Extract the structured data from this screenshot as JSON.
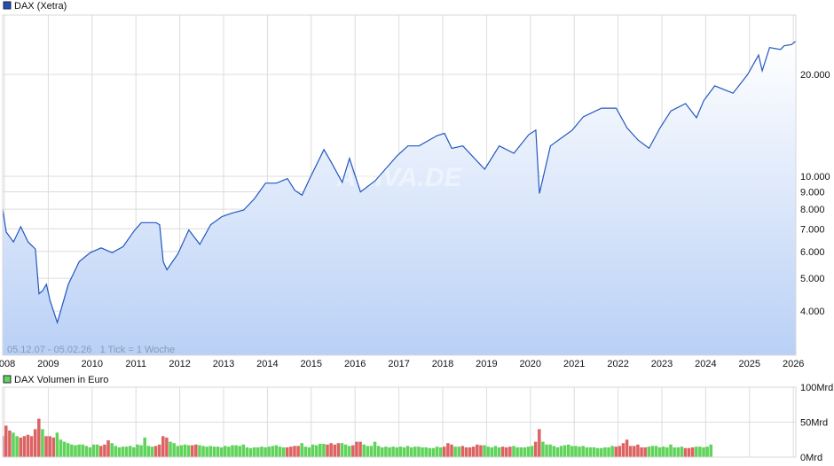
{
  "chart_data": [
    {
      "type": "area",
      "legend": "DAX (Xetra)",
      "legend_placement": "top-left",
      "colors": {
        "line": "#2257c0",
        "fill_top": "#ffffff",
        "fill_bottom": "#b9d0f6",
        "legend_swatch": "#1f50b8"
      },
      "info": "05.12.07 - 05.02.26   1 Tick = 1 Woche",
      "watermark": "ARIVA.DE",
      "y_scale": "log",
      "ylim": [
        3300,
        28000
      ],
      "y_ticks": [
        4000,
        5000,
        6000,
        7000,
        8000,
        9000,
        10000,
        20000
      ],
      "y_tick_labels": [
        "4.000",
        "5.000",
        "6.000",
        "7.000",
        "8.000",
        "9.000",
        "10.000",
        "20.000"
      ],
      "x_ticks": [
        "2008",
        "2009",
        "2010",
        "2011",
        "2012",
        "2013",
        "2014",
        "2015",
        "2016",
        "2017",
        "2018",
        "2019",
        "2020",
        "2021",
        "2022",
        "2023",
        "2024",
        "2025",
        "2026"
      ],
      "grid": true,
      "points": [
        [
          "2007-12",
          8000
        ],
        [
          "2008-01",
          6850
        ],
        [
          "2008-03",
          6400
        ],
        [
          "2008-05",
          7100
        ],
        [
          "2008-07",
          6400
        ],
        [
          "2008-09",
          6100
        ],
        [
          "2008-10",
          4500
        ],
        [
          "2008-11",
          4600
        ],
        [
          "2008-12",
          4800
        ],
        [
          "2009-01",
          4300
        ],
        [
          "2009-03",
          3700
        ],
        [
          "2009-06",
          4800
        ],
        [
          "2009-09",
          5600
        ],
        [
          "2009-12",
          5950
        ],
        [
          "2010-03",
          6150
        ],
        [
          "2010-06",
          5950
        ],
        [
          "2010-09",
          6200
        ],
        [
          "2010-12",
          6900
        ],
        [
          "2011-02",
          7300
        ],
        [
          "2011-06",
          7300
        ],
        [
          "2011-07",
          7200
        ],
        [
          "2011-08",
          5600
        ],
        [
          "2011-09",
          5300
        ],
        [
          "2011-12",
          5900
        ],
        [
          "2012-03",
          6950
        ],
        [
          "2012-06",
          6300
        ],
        [
          "2012-09",
          7200
        ],
        [
          "2012-12",
          7600
        ],
        [
          "2013-03",
          7800
        ],
        [
          "2013-06",
          7950
        ],
        [
          "2013-09",
          8600
        ],
        [
          "2013-12",
          9550
        ],
        [
          "2014-03",
          9550
        ],
        [
          "2014-06",
          9850
        ],
        [
          "2014-08",
          9100
        ],
        [
          "2014-10",
          8800
        ],
        [
          "2014-12",
          9800
        ],
        [
          "2015-04",
          12000
        ],
        [
          "2015-06",
          11000
        ],
        [
          "2015-09",
          9600
        ],
        [
          "2015-11",
          11300
        ],
        [
          "2016-02",
          9000
        ],
        [
          "2016-06",
          9700
        ],
        [
          "2016-12",
          11500
        ],
        [
          "2017-03",
          12300
        ],
        [
          "2017-06",
          12300
        ],
        [
          "2017-11",
          13200
        ],
        [
          "2018-01",
          13400
        ],
        [
          "2018-03",
          12100
        ],
        [
          "2018-06",
          12300
        ],
        [
          "2018-12",
          10500
        ],
        [
          "2019-04",
          12300
        ],
        [
          "2019-08",
          11700
        ],
        [
          "2019-12",
          13250
        ],
        [
          "2020-02",
          13700
        ],
        [
          "2020-03",
          8900
        ],
        [
          "2020-06",
          12300
        ],
        [
          "2020-12",
          13700
        ],
        [
          "2021-03",
          15000
        ],
        [
          "2021-08",
          15900
        ],
        [
          "2021-12",
          15900
        ],
        [
          "2022-03",
          13900
        ],
        [
          "2022-06",
          12800
        ],
        [
          "2022-09",
          12100
        ],
        [
          "2022-12",
          13900
        ],
        [
          "2023-03",
          15600
        ],
        [
          "2023-07",
          16400
        ],
        [
          "2023-10",
          14900
        ],
        [
          "2023-12",
          16750
        ],
        [
          "2024-03",
          18500
        ],
        [
          "2024-08",
          17600
        ],
        [
          "2024-12",
          20000
        ],
        [
          "2025-03",
          22800
        ],
        [
          "2025-04",
          20500
        ],
        [
          "2025-06",
          24000
        ],
        [
          "2025-09",
          23700
        ],
        [
          "2025-10",
          24300
        ],
        [
          "2025-12",
          24500
        ],
        [
          "2026-01",
          25000
        ],
        [
          "2026-02",
          24500
        ]
      ]
    },
    {
      "type": "bar",
      "legend": "DAX Volumen in Euro",
      "legend_placement": "top-left",
      "colors": {
        "up": "#5fd35a",
        "down": "#dd6363",
        "legend_swatch": "#5fd35a"
      },
      "unit": "Mrd",
      "ylim": [
        0,
        100
      ],
      "y_ticks": [
        0,
        50,
        100
      ],
      "y_tick_labels": [
        "0Mrd",
        "50Mrd",
        "100Mrd"
      ],
      "start": "2007-12",
      "monthly_volume_mrd": [
        30,
        45,
        38,
        35,
        30,
        28,
        30,
        32,
        30,
        40,
        55,
        40,
        30,
        30,
        28,
        35,
        25,
        22,
        20,
        18,
        17,
        18,
        18,
        16,
        14,
        18,
        18,
        16,
        18,
        24,
        20,
        16,
        14,
        15,
        15,
        16,
        14,
        18,
        17,
        28,
        16,
        15,
        16,
        18,
        30,
        28,
        22,
        20,
        16,
        17,
        18,
        17,
        17,
        18,
        17,
        16,
        15,
        16,
        15,
        15,
        14,
        16,
        15,
        17,
        17,
        16,
        18,
        14,
        13,
        14,
        14,
        15,
        14,
        15,
        16,
        17,
        15,
        14,
        14,
        15,
        16,
        16,
        20,
        15,
        14,
        18,
        17,
        19,
        19,
        18,
        20,
        18,
        20,
        20,
        18,
        16,
        17,
        22,
        22,
        18,
        16,
        16,
        22,
        16,
        14,
        15,
        14,
        15,
        14,
        15,
        14,
        16,
        14,
        15,
        15,
        14,
        14,
        13,
        13,
        15,
        14,
        15,
        20,
        18,
        15,
        15,
        16,
        14,
        14,
        15,
        18,
        17,
        17,
        15,
        14,
        16,
        14,
        15,
        14,
        15,
        16,
        14,
        14,
        14,
        15,
        16,
        22,
        40,
        22,
        18,
        18,
        16,
        14,
        16,
        17,
        18,
        16,
        16,
        15,
        16,
        14,
        14,
        14,
        13,
        13,
        14,
        14,
        16,
        15,
        16,
        20,
        25,
        16,
        16,
        18,
        14,
        14,
        15,
        16,
        16,
        14,
        15,
        14,
        18,
        14,
        14,
        15,
        13,
        13,
        14,
        15,
        15,
        14,
        15,
        18
      ]
    }
  ]
}
